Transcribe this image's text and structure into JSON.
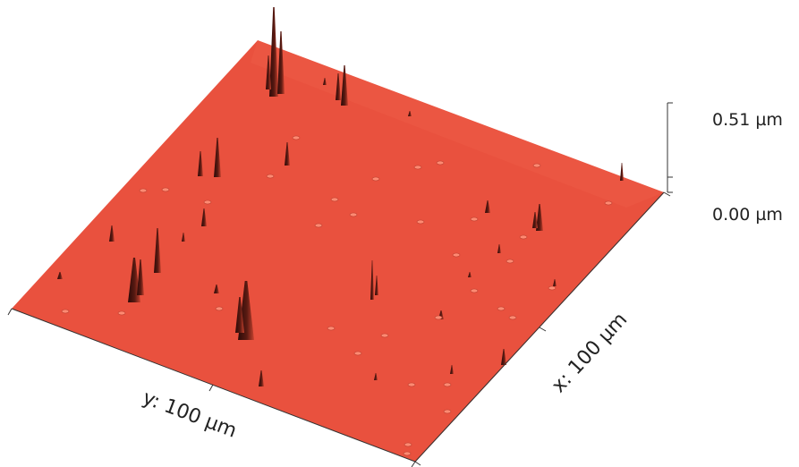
{
  "surface": {
    "color": "#e9513e",
    "spike_color": "#3a0f0b"
  },
  "height_scale": {
    "max_label": "0.51 µm",
    "min_label": "0.00 µm"
  },
  "axes": {
    "y_label": "y: 100 µm",
    "x_label": "x: 100 µm"
  }
}
